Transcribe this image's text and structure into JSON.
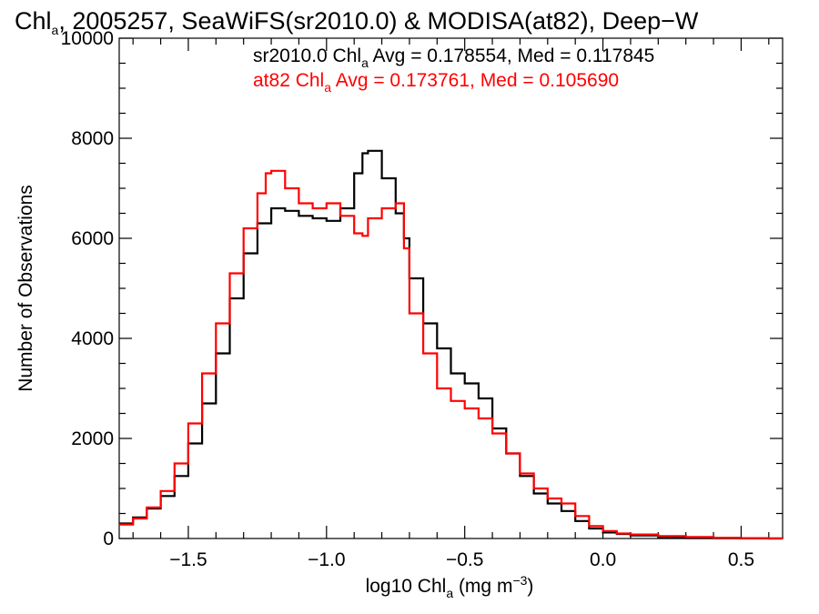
{
  "chart_data": {
    "type": "line",
    "style": "step-histogram",
    "title": {
      "pre": "Chl",
      "sub": "a",
      "post": ", 2005257, SeaWiFS(sr2010.0) & MODISA(at82), Deep−W"
    },
    "xlabel": {
      "pre": "log10 Chl",
      "sub": "a",
      "post": " (mg m",
      "sup": "−3",
      "end": ")"
    },
    "ylabel": "Number of Observations",
    "xlim": [
      -1.75,
      0.65
    ],
    "ylim": [
      0,
      10000
    ],
    "x_ticks": [
      {
        "value": -1.5,
        "label": "−1.5"
      },
      {
        "value": -1.0,
        "label": "−1.0"
      },
      {
        "value": -0.5,
        "label": "−0.5"
      },
      {
        "value": 0.0,
        "label": "0.0"
      },
      {
        "value": 0.5,
        "label": "0.5"
      }
    ],
    "y_ticks": [
      {
        "value": 0,
        "label": "0"
      },
      {
        "value": 2000,
        "label": "2000"
      },
      {
        "value": 4000,
        "label": "4000"
      },
      {
        "value": 6000,
        "label": "6000"
      },
      {
        "value": 8000,
        "label": "8000"
      },
      {
        "value": 10000,
        "label": "10000"
      }
    ],
    "grid": false,
    "legend": [
      {
        "color": "#000000",
        "pre": "sr2010.0 Chl",
        "sub": "a",
        "post": " Avg = 0.178554, Med = 0.117845"
      },
      {
        "color": "#ff0000",
        "pre": "at82 Chl",
        "sub": "a",
        "post": " Avg = 0.173761, Med = 0.105690"
      }
    ],
    "series": [
      {
        "color": "#000000",
        "x": [
          -1.75,
          -1.7,
          -1.65,
          -1.6,
          -1.55,
          -1.5,
          -1.45,
          -1.4,
          -1.35,
          -1.3,
          -1.25,
          -1.2,
          -1.15,
          -1.1,
          -1.05,
          -1.0,
          -0.95,
          -0.9,
          -0.87,
          -0.85,
          -0.8,
          -0.75,
          -0.72,
          -0.7,
          -0.65,
          -0.6,
          -0.55,
          -0.5,
          -0.45,
          -0.4,
          -0.35,
          -0.3,
          -0.25,
          -0.2,
          -0.15,
          -0.1,
          -0.05,
          0.0,
          0.05,
          0.1,
          0.2,
          0.3,
          0.4,
          0.5,
          0.6,
          0.65
        ],
        "y": [
          300,
          420,
          600,
          850,
          1250,
          1900,
          2700,
          3700,
          4800,
          5700,
          6300,
          6600,
          6550,
          6450,
          6400,
          6350,
          6600,
          7300,
          7700,
          7750,
          7200,
          6500,
          6000,
          5200,
          4300,
          3800,
          3300,
          3100,
          2800,
          2200,
          1700,
          1250,
          900,
          700,
          550,
          350,
          200,
          120,
          90,
          60,
          30,
          10,
          5,
          2,
          0,
          0
        ]
      },
      {
        "color": "#ff0000",
        "x": [
          -1.75,
          -1.7,
          -1.65,
          -1.6,
          -1.55,
          -1.5,
          -1.45,
          -1.4,
          -1.35,
          -1.3,
          -1.25,
          -1.22,
          -1.2,
          -1.15,
          -1.1,
          -1.05,
          -1.0,
          -0.95,
          -0.9,
          -0.87,
          -0.85,
          -0.8,
          -0.75,
          -0.72,
          -0.7,
          -0.65,
          -0.6,
          -0.55,
          -0.5,
          -0.45,
          -0.4,
          -0.35,
          -0.3,
          -0.25,
          -0.2,
          -0.15,
          -0.1,
          -0.05,
          0.0,
          0.05,
          0.1,
          0.2,
          0.3,
          0.4,
          0.5,
          0.6,
          0.65
        ],
        "y": [
          280,
          400,
          620,
          950,
          1500,
          2300,
          3300,
          4300,
          5300,
          6200,
          6900,
          7300,
          7350,
          7000,
          6700,
          6600,
          6700,
          6450,
          6100,
          6050,
          6400,
          6600,
          6700,
          5800,
          4500,
          3700,
          3000,
          2750,
          2600,
          2400,
          2100,
          1700,
          1300,
          1000,
          800,
          700,
          450,
          250,
          150,
          100,
          80,
          50,
          30,
          15,
          8,
          3,
          0
        ]
      }
    ]
  }
}
